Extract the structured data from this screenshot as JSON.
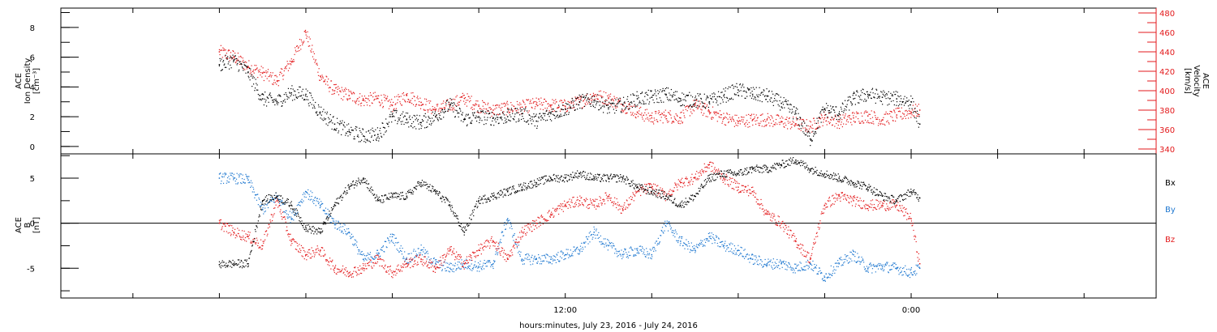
{
  "chart_data": [
    {
      "type": "scatter",
      "panel": "top",
      "ylabel_left": [
        "ACE",
        "Ion Density",
        "[cm⁻³]"
      ],
      "ylabel_right": [
        "ACE",
        "Velocity",
        "[km/s]"
      ],
      "left_axis": {
        "ylim": [
          -0.5,
          9.3
        ],
        "ticks": [
          0,
          2,
          4,
          6,
          8
        ],
        "tick_labels": [
          "0",
          "2",
          "4",
          "6",
          "8"
        ]
      },
      "right_axis": {
        "ylim": [
          335,
          485
        ],
        "ticks": [
          340,
          360,
          380,
          400,
          420,
          440,
          460,
          480
        ],
        "tick_labels": [
          "340",
          "360",
          "380",
          "400",
          "420",
          "440",
          "460",
          "480"
        ],
        "color": "#e31a1c"
      },
      "series": [
        {
          "axis": "left",
          "color": "#000000",
          "x": [
            0.0,
            0.5,
            1.0,
            1.5,
            2.0,
            2.5,
            3.0,
            3.5,
            4.0,
            4.5,
            5.0,
            5.5,
            6.0,
            6.5,
            7.0,
            7.5,
            8.0,
            8.5,
            9.0,
            9.5,
            10.0,
            10.5,
            11.0,
            11.5,
            12.0,
            12.5,
            13.0,
            13.5,
            14.0,
            14.5,
            15.0,
            15.5,
            16.0,
            16.5,
            17.0,
            17.5,
            18.0,
            18.5,
            19.0,
            19.5,
            20.0,
            20.5,
            21.0,
            21.5,
            22.0,
            22.5,
            23.0,
            23.5,
            24.0,
            24.3
          ],
          "y": [
            5.5,
            5.8,
            5.0,
            3.2,
            3.0,
            3.6,
            3.5,
            2.3,
            1.5,
            1.0,
            0.7,
            0.8,
            2.0,
            1.8,
            1.6,
            2.0,
            2.8,
            1.8,
            2.0,
            1.9,
            2.0,
            2.2,
            1.7,
            2.2,
            2.5,
            3.0,
            3.1,
            2.6,
            2.8,
            3.2,
            3.3,
            3.5,
            3.2,
            3.1,
            3.0,
            3.4,
            3.8,
            3.5,
            3.4,
            2.9,
            2.2,
            0.5,
            2.5,
            2.2,
            3.2,
            3.5,
            3.3,
            3.2,
            3.0,
            1.5
          ]
        },
        {
          "axis": "right",
          "color": "#e31a1c",
          "x": [
            0.0,
            0.5,
            1.0,
            1.5,
            2.0,
            2.5,
            3.0,
            3.5,
            4.0,
            4.5,
            5.0,
            5.5,
            6.0,
            6.5,
            7.0,
            7.5,
            8.0,
            8.5,
            9.0,
            9.5,
            10.0,
            10.5,
            11.0,
            11.5,
            12.0,
            12.5,
            13.0,
            13.5,
            14.0,
            14.5,
            15.0,
            15.5,
            16.0,
            16.5,
            17.0,
            17.5,
            18.0,
            18.5,
            19.0,
            19.5,
            20.0,
            20.5,
            21.0,
            21.5,
            22.0,
            22.5,
            23.0,
            23.5,
            24.0,
            24.3
          ],
          "y": [
            440,
            435,
            425,
            418,
            410,
            430,
            460,
            415,
            400,
            395,
            390,
            392,
            385,
            395,
            388,
            380,
            385,
            392,
            384,
            380,
            382,
            383,
            386,
            385,
            384,
            388,
            395,
            392,
            385,
            378,
            372,
            374,
            372,
            385,
            378,
            372,
            368,
            370,
            370,
            368,
            366,
            363,
            372,
            368,
            372,
            374,
            370,
            375,
            378,
            380
          ]
        }
      ]
    },
    {
      "type": "scatter",
      "panel": "bottom",
      "ylabel_left": [
        "ACE",
        "B",
        "[nT]"
      ],
      "ylim": [
        -8.3,
        7.7
      ],
      "ticks": [
        -5,
        0,
        5
      ],
      "tick_labels": [
        "-5",
        "0",
        "5"
      ],
      "zero_line": true,
      "x_tick_labels": [
        "12:00",
        "0:00"
      ],
      "xlabel": "hours:minutes, July 23, 2016 - July 24, 2016",
      "legend": [
        "Bx",
        "By",
        "Bz"
      ],
      "series": [
        {
          "name": "Bx",
          "color": "#000000",
          "x": [
            0.0,
            0.5,
            1.0,
            1.5,
            2.0,
            2.5,
            3.0,
            3.5,
            4.0,
            4.5,
            5.0,
            5.5,
            6.0,
            6.5,
            7.0,
            7.5,
            8.0,
            8.5,
            9.0,
            9.5,
            10.0,
            10.5,
            11.0,
            11.5,
            12.0,
            12.5,
            13.0,
            13.5,
            14.0,
            14.5,
            15.0,
            15.5,
            16.0,
            16.5,
            17.0,
            17.5,
            18.0,
            18.5,
            19.0,
            19.5,
            20.0,
            20.5,
            21.0,
            21.5,
            22.0,
            22.5,
            23.0,
            23.5,
            24.0,
            24.3
          ],
          "y": [
            -4.6,
            -4.5,
            -4.5,
            2.5,
            3.0,
            2.0,
            -0.5,
            -1.0,
            2.0,
            4.0,
            5.0,
            2.5,
            3.0,
            3.0,
            4.5,
            3.5,
            2.0,
            -1.0,
            2.5,
            3.0,
            3.5,
            4.0,
            4.5,
            5.0,
            5.0,
            5.5,
            5.0,
            5.0,
            5.0,
            4.0,
            3.5,
            3.0,
            2.0,
            3.0,
            5.0,
            5.5,
            5.5,
            6.0,
            6.0,
            6.5,
            7.0,
            6.0,
            5.5,
            5.0,
            4.5,
            4.0,
            3.0,
            2.5,
            3.5,
            2.8
          ]
        },
        {
          "name": "By",
          "color": "#1f78d0",
          "x": [
            0.0,
            0.5,
            1.0,
            1.5,
            2.0,
            2.5,
            3.0,
            3.5,
            4.0,
            4.5,
            5.0,
            5.5,
            6.0,
            6.5,
            7.0,
            7.5,
            8.0,
            8.5,
            9.0,
            9.5,
            10.0,
            10.5,
            11.0,
            11.5,
            12.0,
            12.5,
            13.0,
            13.5,
            14.0,
            14.5,
            15.0,
            15.5,
            16.0,
            16.5,
            17.0,
            17.5,
            18.0,
            18.5,
            19.0,
            19.5,
            20.0,
            20.5,
            21.0,
            21.5,
            22.0,
            22.5,
            23.0,
            23.5,
            24.0,
            24.3
          ],
          "y": [
            5.0,
            5.0,
            4.8,
            1.5,
            3.0,
            0.5,
            3.5,
            2.0,
            0.0,
            -1.0,
            -4.0,
            -3.5,
            -1.5,
            -4.0,
            -3.0,
            -4.5,
            -5.0,
            -4.5,
            -4.8,
            -4.5,
            0.5,
            -4.0,
            -4.0,
            -4.0,
            -3.5,
            -3.0,
            -1.0,
            -2.5,
            -3.5,
            -3.0,
            -3.5,
            0.0,
            -2.0,
            -3.0,
            -1.5,
            -2.5,
            -3.0,
            -4.0,
            -4.5,
            -4.5,
            -5.0,
            -4.5,
            -6.0,
            -4.5,
            -3.5,
            -5.0,
            -4.8,
            -5.0,
            -5.5,
            -5.0
          ]
        },
        {
          "name": "Bz",
          "color": "#e31a1c",
          "x": [
            0.0,
            0.5,
            1.0,
            1.5,
            2.0,
            2.5,
            3.0,
            3.5,
            4.0,
            4.5,
            5.0,
            5.5,
            6.0,
            6.5,
            7.0,
            7.5,
            8.0,
            8.5,
            9.0,
            9.5,
            10.0,
            10.5,
            11.0,
            11.5,
            12.0,
            12.5,
            13.0,
            13.5,
            14.0,
            14.5,
            15.0,
            15.5,
            16.0,
            16.5,
            17.0,
            17.5,
            18.0,
            18.5,
            19.0,
            19.5,
            20.0,
            20.5,
            21.0,
            21.5,
            22.0,
            22.5,
            23.0,
            23.5,
            24.0,
            24.3
          ],
          "y": [
            0.0,
            -1.0,
            -1.5,
            -2.5,
            2.5,
            -2.0,
            -3.5,
            -3.0,
            -5.0,
            -5.5,
            -5.0,
            -4.0,
            -5.5,
            -4.5,
            -4.0,
            -5.0,
            -3.0,
            -4.5,
            -3.0,
            -2.0,
            -4.0,
            -1.0,
            0.0,
            1.0,
            2.0,
            2.5,
            2.0,
            3.0,
            1.5,
            3.5,
            4.0,
            3.0,
            4.5,
            5.0,
            6.5,
            5.0,
            4.0,
            3.5,
            1.0,
            0.0,
            -2.0,
            -4.0,
            2.0,
            3.0,
            2.5,
            2.0,
            2.0,
            2.0,
            0.5,
            -4.5
          ]
        }
      ]
    }
  ]
}
